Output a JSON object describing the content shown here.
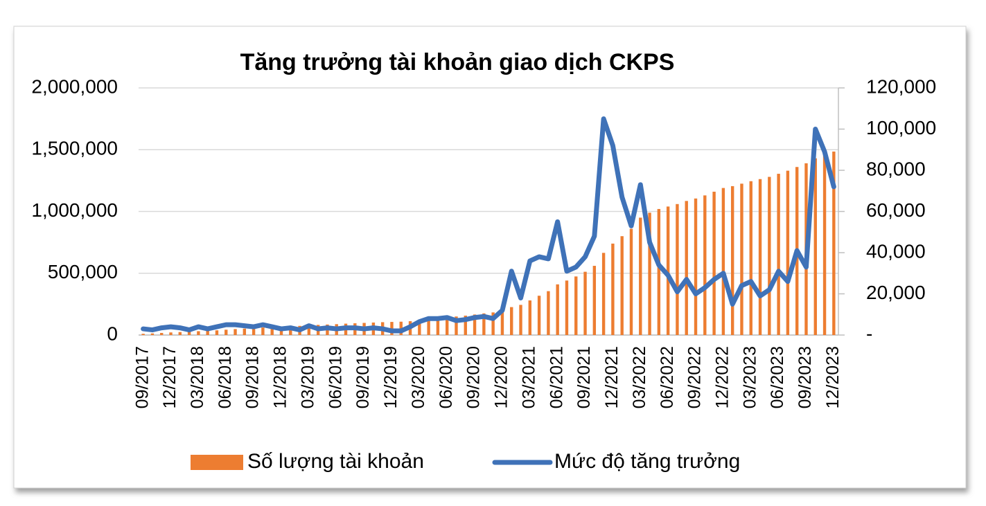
{
  "chart_data": {
    "type": "combo",
    "title": "Tăng trưởng tài khoản giao dịch CKPS",
    "categories": [
      "09/2017",
      null,
      null,
      "12/2017",
      null,
      null,
      "03/2018",
      null,
      null,
      "06/2018",
      null,
      null,
      "09/2018",
      null,
      null,
      "12/2018",
      null,
      null,
      "03/2019",
      null,
      null,
      "06/2019",
      null,
      null,
      "09/2019",
      null,
      null,
      "12/2019",
      null,
      null,
      "03/2020",
      null,
      null,
      "06/2020",
      null,
      null,
      "09/2020",
      null,
      null,
      "12/2020",
      null,
      null,
      "03/2021",
      null,
      null,
      "06/2021",
      null,
      null,
      "09/2021",
      null,
      null,
      "12/2021",
      null,
      null,
      "03/2022",
      null,
      null,
      "06/2022",
      null,
      null,
      "09/2022",
      null,
      null,
      "12/2022",
      null,
      null,
      "03/2023",
      null,
      null,
      "06/2023",
      null,
      null,
      "09/2023",
      null,
      null,
      "12/2023"
    ],
    "series": [
      {
        "name": "Số lượng tài khoản",
        "type": "bar",
        "axis": "y",
        "color": "#ed7d31",
        "values": [
          10000,
          13000,
          17000,
          21000,
          24000,
          27000,
          31000,
          34000,
          38000,
          43000,
          48000,
          52000,
          56000,
          61000,
          65000,
          68000,
          72000,
          74000,
          79000,
          82000,
          85000,
          88000,
          92000,
          95000,
          98000,
          101000,
          104000,
          106000,
          108000,
          112000,
          118000,
          126000,
          134000,
          143000,
          150000,
          157000,
          166000,
          175000,
          183000,
          195000,
          226000,
          244000,
          280000,
          318000,
          355000,
          410000,
          441000,
          474000,
          512000,
          560000,
          665000,
          740000,
          800000,
          860000,
          950000,
          990000,
          1020000,
          1040000,
          1060000,
          1085000,
          1105000,
          1130000,
          1160000,
          1190000,
          1205000,
          1225000,
          1245000,
          1262000,
          1280000,
          1305000,
          1330000,
          1360000,
          1390000,
          1430000,
          1460000,
          1485000
        ]
      },
      {
        "name": "Mức độ tăng trưởng",
        "type": "line",
        "axis": "y2",
        "color": "#3f72b8",
        "values": [
          3000,
          2500,
          3500,
          4000,
          3500,
          2500,
          4000,
          3000,
          4000,
          5000,
          5000,
          4500,
          4000,
          5000,
          4000,
          3000,
          3500,
          2500,
          4500,
          3000,
          3500,
          3000,
          3500,
          3500,
          3000,
          3500,
          3000,
          2000,
          2000,
          4000,
          6500,
          8000,
          8000,
          8500,
          7000,
          7500,
          8500,
          9000,
          8000,
          12000,
          31000,
          18000,
          36000,
          38000,
          37000,
          55000,
          31000,
          33000,
          38000,
          48000,
          105000,
          92000,
          67000,
          53000,
          73000,
          45000,
          34000,
          29000,
          21000,
          27000,
          20000,
          23000,
          27000,
          30000,
          15000,
          24000,
          26000,
          19000,
          22000,
          31000,
          26000,
          41000,
          33000,
          100000,
          89000,
          72000
        ]
      }
    ],
    "ylim": [
      0,
      2000000
    ],
    "yticks": [
      0,
      {
        "value": 500000,
        "label": "500,000"
      },
      {
        "value": 1000000,
        "label": "1,000,000"
      },
      {
        "value": 1500000,
        "label": "1,500,000"
      },
      {
        "value": 2000000,
        "label": "2,000,000"
      }
    ],
    "y2lim": [
      0,
      120000
    ],
    "y2ticks": [
      {
        "value": 0,
        "label": "-"
      },
      {
        "value": 20000,
        "label": "20,000"
      },
      {
        "value": 40000,
        "label": "40,000"
      },
      {
        "value": 60000,
        "label": "60,000"
      },
      {
        "value": 80000,
        "label": "80,000"
      },
      {
        "value": 100000,
        "label": "100,000"
      },
      {
        "value": 120000,
        "label": "120,000"
      }
    ],
    "grid": true,
    "legend": "bottom"
  }
}
